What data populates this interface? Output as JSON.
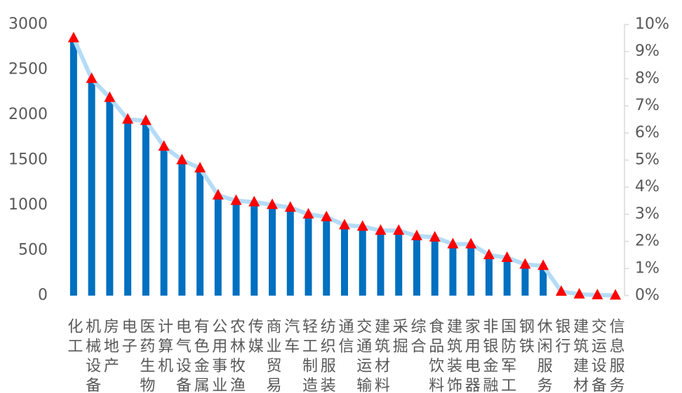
{
  "chart_data": {
    "type": "bar_line",
    "categories": [
      "化工",
      "机械设备",
      "房地产",
      "电子",
      "医药生物",
      "计算机",
      "电气设备",
      "有色金属",
      "公用事业",
      "农林牧渔",
      "传媒",
      "商业贸易",
      "汽车",
      "轻工制造",
      "纺织服装",
      "通信",
      "交通运输",
      "建筑材料",
      "采掘",
      "综合",
      "食品饮料",
      "建筑装饰",
      "家用电器",
      "非银金融",
      "国防军工",
      "钢铁",
      "休闲服务",
      "银行",
      "建筑建材",
      "交运设备",
      "信息服务"
    ],
    "series": [
      {
        "type": "bar",
        "color": "#0070c0",
        "values": [
          2850,
          2400,
          2180,
          1950,
          1920,
          1630,
          1470,
          1400,
          1100,
          1040,
          1030,
          1010,
          970,
          900,
          860,
          780,
          760,
          720,
          710,
          660,
          640,
          570,
          560,
          450,
          430,
          340,
          320,
          20,
          10,
          5,
          3
        ]
      },
      {
        "type": "line",
        "axis": "y2",
        "color": "#b4dcf7",
        "marker_color": "#ff0000",
        "values": [
          9.5,
          8.0,
          7.3,
          6.5,
          6.45,
          5.5,
          5.0,
          4.7,
          3.7,
          3.5,
          3.45,
          3.35,
          3.25,
          3.0,
          2.9,
          2.6,
          2.55,
          2.4,
          2.4,
          2.2,
          2.15,
          1.9,
          1.9,
          1.5,
          1.4,
          1.15,
          1.1,
          0.15,
          0.05,
          0.02,
          0.01
        ]
      }
    ],
    "ylim": [
      0,
      3000
    ],
    "yticks": [
      0,
      500,
      1000,
      1500,
      2000,
      2500,
      3000
    ],
    "y2lim": [
      0,
      10
    ],
    "y2ticks": [
      {
        "value": 0,
        "label": "0%"
      },
      {
        "value": 1,
        "label": "1%"
      },
      {
        "value": 2,
        "label": "2%"
      },
      {
        "value": 3,
        "label": "3%"
      },
      {
        "value": 4,
        "label": "4%"
      },
      {
        "value": 5,
        "label": "5%"
      },
      {
        "value": 6,
        "label": "6%"
      },
      {
        "value": 7,
        "label": "7%"
      },
      {
        "value": 8,
        "label": "8%"
      },
      {
        "value": 9,
        "label": "9%"
      },
      {
        "value": 10,
        "label": "10%"
      }
    ],
    "grid": false
  }
}
